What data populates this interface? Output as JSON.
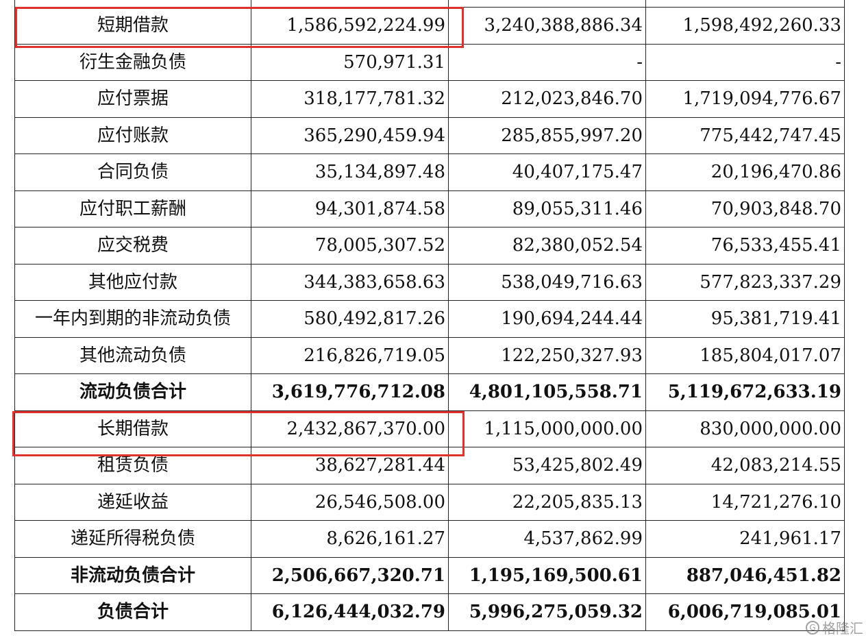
{
  "rows": [
    {
      "label": "",
      "v1": "",
      "v2": "",
      "v3": "",
      "bold": false
    },
    {
      "label": "短期借款",
      "v1": "1,586,592,224.99",
      "v2": "3,240,388,886.34",
      "v3": "1,598,492,260.33",
      "bold": false
    },
    {
      "label": "衍生金融负债",
      "v1": "570,971.31",
      "v2": "-",
      "v3": "-",
      "bold": false
    },
    {
      "label": "应付票据",
      "v1": "318,177,781.32",
      "v2": "212,023,846.70",
      "v3": "1,719,094,776.67",
      "bold": false
    },
    {
      "label": "应付账款",
      "v1": "365,290,459.94",
      "v2": "285,855,997.20",
      "v3": "775,442,747.45",
      "bold": false
    },
    {
      "label": "合同负债",
      "v1": "35,134,897.48",
      "v2": "40,407,175.47",
      "v3": "20,196,470.86",
      "bold": false
    },
    {
      "label": "应付职工薪酬",
      "v1": "94,301,874.58",
      "v2": "89,055,311.46",
      "v3": "70,903,848.70",
      "bold": false
    },
    {
      "label": "应交税费",
      "v1": "78,005,307.52",
      "v2": "82,380,052.54",
      "v3": "76,533,455.41",
      "bold": false
    },
    {
      "label": "其他应付款",
      "v1": "344,383,658.63",
      "v2": "538,049,716.63",
      "v3": "577,823,337.29",
      "bold": false
    },
    {
      "label": "一年内到期的非流动负债",
      "v1": "580,492,817.26",
      "v2": "190,694,244.44",
      "v3": "95,381,719.41",
      "bold": false
    },
    {
      "label": "其他流动负债",
      "v1": "216,826,719.05",
      "v2": "122,250,327.93",
      "v3": "185,804,017.07",
      "bold": false
    },
    {
      "label": "流动负债合计",
      "v1": "3,619,776,712.08",
      "v2": "4,801,105,558.71",
      "v3": "5,119,672,633.19",
      "bold": true
    },
    {
      "label": "长期借款",
      "v1": "2,432,867,370.00",
      "v2": "1,115,000,000.00",
      "v3": "830,000,000.00",
      "bold": false
    },
    {
      "label": "租赁负债",
      "v1": "38,627,281.44",
      "v2": "53,425,802.49",
      "v3": "42,083,214.55",
      "bold": false
    },
    {
      "label": "递延收益",
      "v1": "26,546,508.00",
      "v2": "22,205,835.13",
      "v3": "14,721,276.10",
      "bold": false
    },
    {
      "label": "递延所得税负债",
      "v1": "8,626,161.27",
      "v2": "4,537,862.99",
      "v3": "241,961.17",
      "bold": false
    },
    {
      "label": "非流动负债合计",
      "v1": "2,506,667,320.71",
      "v2": "1,195,169,500.61",
      "v3": "887,046,451.82",
      "bold": true
    },
    {
      "label": "负债合计",
      "v1": "6,126,444,032.79",
      "v2": "5,996,275,059.32",
      "v3": "6,006,719,085.01",
      "bold": true
    }
  ],
  "highlight_color": "#e0322c",
  "watermark": {
    "icon": "gelonghui-logo-icon",
    "text": "格隆汇"
  }
}
